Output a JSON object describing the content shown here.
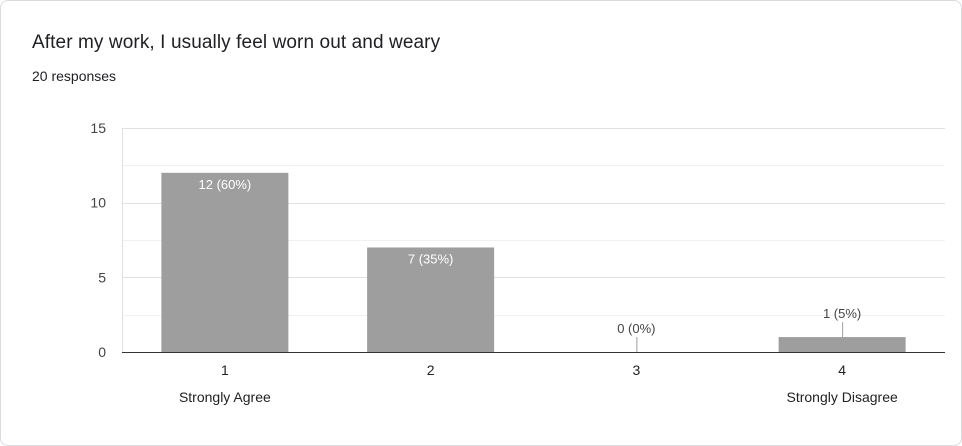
{
  "header": {
    "question": "After my work, I usually feel worn out and weary",
    "responses": "20 responses"
  },
  "colors": {
    "bar": "#9e9e9e",
    "grid": "#e8eaed",
    "axis": "#333333",
    "label_inside": "#ffffff",
    "label_outside": "#444444"
  },
  "chart_data": {
    "type": "bar",
    "title": "After my work, I usually feel worn out and weary",
    "categories": [
      "1",
      "2",
      "3",
      "4"
    ],
    "category_descriptions": [
      "Strongly Agree",
      "",
      "",
      "Strongly Disagree"
    ],
    "values": [
      12,
      7,
      0,
      1
    ],
    "data_labels": [
      "12 (60%)",
      "7 (35%)",
      "0 (0%)",
      "1 (5%)"
    ],
    "yticks": [
      0,
      5,
      10,
      15
    ],
    "ylim": [
      0,
      15
    ],
    "grid": true,
    "legend": "none"
  }
}
